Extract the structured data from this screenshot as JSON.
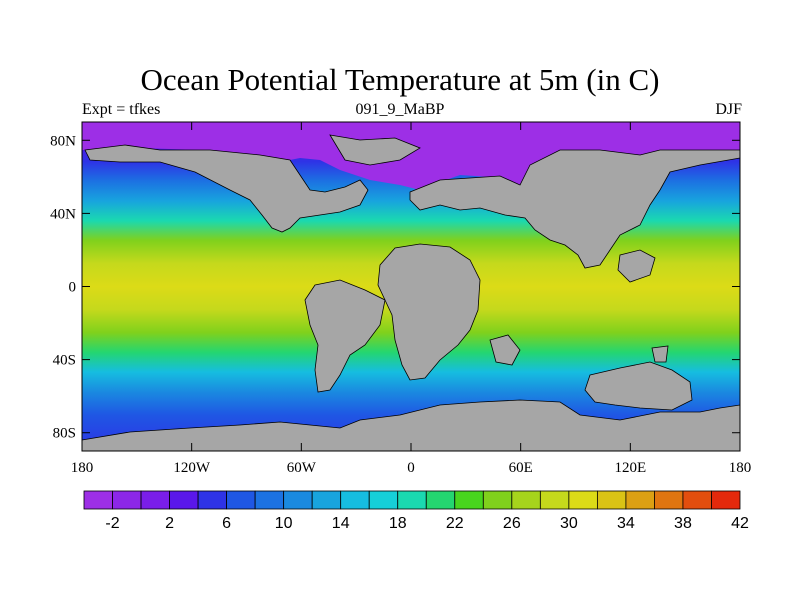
{
  "title": "Ocean Potential Temperature at 5m (in C)",
  "subtitle_left": "Expt = tfkes",
  "subtitle_center": "091_9_MaBP",
  "subtitle_right": "DJF",
  "map": {
    "lat_ticks": [
      {
        "value": 80,
        "label": "80N"
      },
      {
        "value": 40,
        "label": "40N"
      },
      {
        "value": 0,
        "label": "0"
      },
      {
        "value": -40,
        "label": "40S"
      },
      {
        "value": -80,
        "label": "80S"
      }
    ],
    "lon_ticks": [
      {
        "value": -180,
        "label": "180"
      },
      {
        "value": -120,
        "label": "120W"
      },
      {
        "value": -60,
        "label": "60W"
      },
      {
        "value": 0,
        "label": "0"
      },
      {
        "value": 60,
        "label": "60E"
      },
      {
        "value": 120,
        "label": "120E"
      },
      {
        "value": 180,
        "label": "180"
      }
    ],
    "lon_range": [
      -180,
      180
    ],
    "lat_range": [
      -90,
      90
    ],
    "land_color": "#a6a6a6"
  },
  "colorbar": {
    "colors": [
      "#9d2fe6",
      "#8c27e8",
      "#7a1ee9",
      "#5a17ea",
      "#2e33e6",
      "#1f57e4",
      "#1c72e2",
      "#1a8ae0",
      "#18a4de",
      "#16bde0",
      "#16cfd8",
      "#1ad9b0",
      "#24d670",
      "#48d51e",
      "#80d11c",
      "#a6d41c",
      "#c5d91c",
      "#dcdb17",
      "#dac315",
      "#dca013",
      "#e07510",
      "#e24e0e",
      "#e4290c"
    ],
    "labels": [
      "-2",
      "2",
      "6",
      "10",
      "14",
      "18",
      "22",
      "26",
      "30",
      "34",
      "38",
      "42"
    ]
  }
}
